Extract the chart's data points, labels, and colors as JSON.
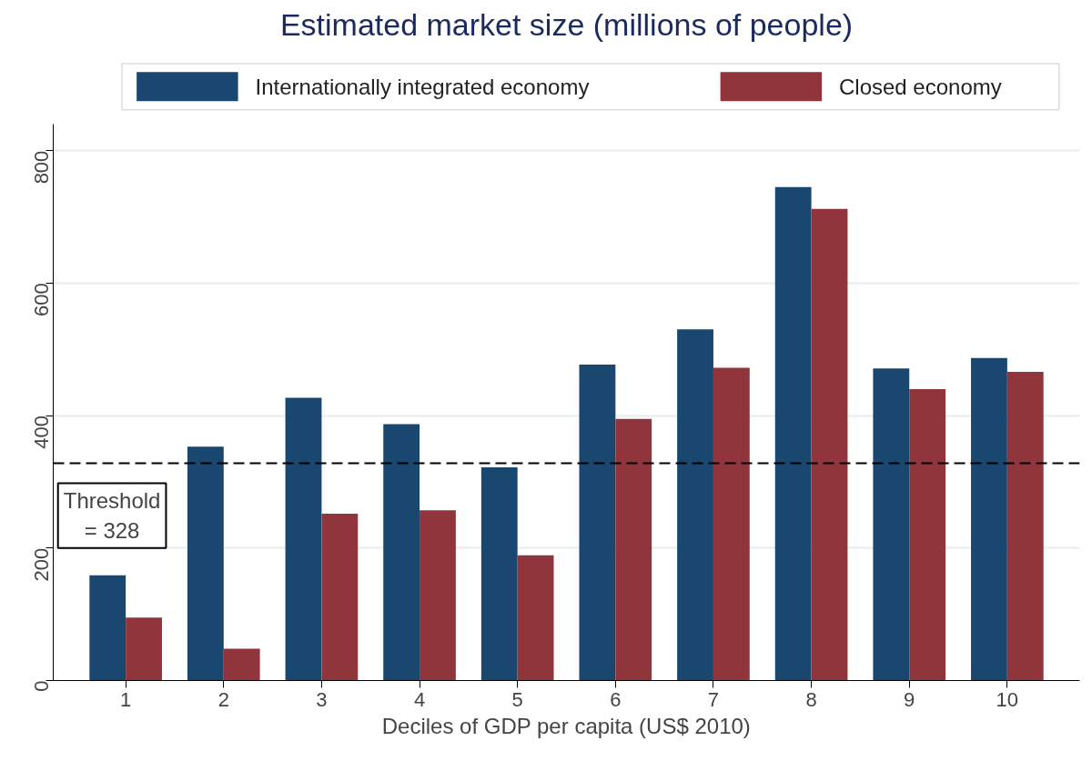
{
  "chart_data": {
    "type": "bar",
    "title": "Estimated market size (millions of people)",
    "xlabel": "Deciles of GDP per capita (US$ 2010)",
    "categories": [
      "1",
      "2",
      "3",
      "4",
      "5",
      "6",
      "7",
      "8",
      "9",
      "10"
    ],
    "series": [
      {
        "name": "Internationally integrated economy",
        "color": "#1a476f",
        "values": [
          159,
          353,
          427,
          387,
          322,
          477,
          530,
          745,
          471,
          487
        ]
      },
      {
        "name": "Closed economy",
        "color": "#90353b",
        "values": [
          95,
          48,
          252,
          257,
          189,
          395,
          472,
          712,
          440,
          466
        ]
      }
    ],
    "ylim": [
      0,
      840
    ],
    "yticks": [
      0,
      200,
      400,
      600,
      800
    ],
    "grid": "y",
    "legend": "top",
    "ref_lines": [
      {
        "axis": "y",
        "value": 328,
        "label": "Threshold\n= 328",
        "line_style": "dashed",
        "color": "#000000"
      }
    ]
  }
}
